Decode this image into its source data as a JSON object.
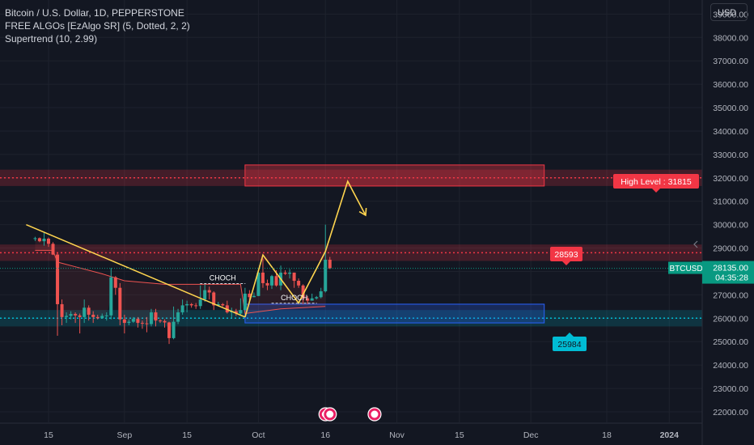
{
  "legend": {
    "line1": "Bitcoin / U.S. Dollar, 1D, PEPPERSTONE",
    "line2": "FREE ALGOs [EzAlgo SR] (5, Dotted, 2, 2)",
    "line3": "Supertrend (10, 2.99)"
  },
  "currency": "USD",
  "colors": {
    "background": "#131722",
    "up": "#26a69a",
    "down": "#ef5350",
    "resistance": "#f23645",
    "support": "#00bcd4",
    "projection": "#ffd54f",
    "price_tag": "#089981"
  },
  "chart_data": {
    "type": "candlestick",
    "y_ticks": [
      22000,
      23000,
      24000,
      25000,
      26000,
      27000,
      28000,
      29000,
      30000,
      31000,
      32000,
      33000,
      34000,
      35000,
      36000,
      37000,
      38000,
      39000
    ],
    "y_tick_labels": [
      "22000.00",
      "23000.00",
      "24000.00",
      "25000.00",
      "26000.00",
      "27000.00",
      "28000.00",
      "29000.00",
      "30000.00",
      "31000.00",
      "32000.00",
      "33000.00",
      "34000.00",
      "35000.00",
      "36000.00",
      "37000.00",
      "38000.00",
      "39000.00"
    ],
    "ylim": [
      21550,
      39600
    ],
    "x_ticks": [
      {
        "label": "15",
        "date": "2023-08-15"
      },
      {
        "label": "Sep",
        "date": "2023-09-01"
      },
      {
        "label": "15",
        "date": "2023-09-15"
      },
      {
        "label": "Oct",
        "date": "2023-10-01"
      },
      {
        "label": "16",
        "date": "2023-10-16"
      },
      {
        "label": "Nov",
        "date": "2023-11-01"
      },
      {
        "label": "15",
        "date": "2023-11-15"
      },
      {
        "label": "Dec",
        "date": "2023-12-01"
      },
      {
        "label": "18",
        "date": "2023-12-18"
      },
      {
        "label": "2024",
        "date": "2024-01-01"
      }
    ],
    "candles": [
      {
        "date": "2023-08-12",
        "o": 29400,
        "h": 29480,
        "l": 29300,
        "c": 29420
      },
      {
        "date": "2023-08-13",
        "o": 29420,
        "h": 29450,
        "l": 29250,
        "c": 29290
      },
      {
        "date": "2023-08-14",
        "o": 29290,
        "h": 29650,
        "l": 29100,
        "c": 29400
      },
      {
        "date": "2023-08-15",
        "o": 29400,
        "h": 29450,
        "l": 29050,
        "c": 29180
      },
      {
        "date": "2023-08-16",
        "o": 29180,
        "h": 29250,
        "l": 28700,
        "c": 28720
      },
      {
        "date": "2023-08-17",
        "o": 28720,
        "h": 28780,
        "l": 25250,
        "c": 26600
      },
      {
        "date": "2023-08-18",
        "o": 26600,
        "h": 26800,
        "l": 25700,
        "c": 26050
      },
      {
        "date": "2023-08-19",
        "o": 26050,
        "h": 26250,
        "l": 25800,
        "c": 26100
      },
      {
        "date": "2023-08-20",
        "o": 26100,
        "h": 26300,
        "l": 25950,
        "c": 26180
      },
      {
        "date": "2023-08-21",
        "o": 26180,
        "h": 26250,
        "l": 25800,
        "c": 26120
      },
      {
        "date": "2023-08-22",
        "o": 26120,
        "h": 26200,
        "l": 25350,
        "c": 26050
      },
      {
        "date": "2023-08-23",
        "o": 26050,
        "h": 26800,
        "l": 25800,
        "c": 26450
      },
      {
        "date": "2023-08-24",
        "o": 26450,
        "h": 26550,
        "l": 25900,
        "c": 26150
      },
      {
        "date": "2023-08-25",
        "o": 26150,
        "h": 26300,
        "l": 25800,
        "c": 26050
      },
      {
        "date": "2023-08-26",
        "o": 26050,
        "h": 26150,
        "l": 25950,
        "c": 26000
      },
      {
        "date": "2023-08-27",
        "o": 26000,
        "h": 26200,
        "l": 25980,
        "c": 26100
      },
      {
        "date": "2023-08-28",
        "o": 26100,
        "h": 26250,
        "l": 25900,
        "c": 26120
      },
      {
        "date": "2023-08-29",
        "o": 26120,
        "h": 28150,
        "l": 25950,
        "c": 27750
      },
      {
        "date": "2023-08-30",
        "o": 27750,
        "h": 27800,
        "l": 27000,
        "c": 27300
      },
      {
        "date": "2023-08-31",
        "o": 27300,
        "h": 27500,
        "l": 25700,
        "c": 25950
      },
      {
        "date": "2023-09-01",
        "o": 25950,
        "h": 26150,
        "l": 25350,
        "c": 25800
      },
      {
        "date": "2023-09-02",
        "o": 25800,
        "h": 25950,
        "l": 25700,
        "c": 25850
      },
      {
        "date": "2023-09-03",
        "o": 25850,
        "h": 26050,
        "l": 25800,
        "c": 25970
      },
      {
        "date": "2023-09-04",
        "o": 25970,
        "h": 26050,
        "l": 25600,
        "c": 25800
      },
      {
        "date": "2023-09-05",
        "o": 25800,
        "h": 25900,
        "l": 25550,
        "c": 25780
      },
      {
        "date": "2023-09-06",
        "o": 25780,
        "h": 26050,
        "l": 25400,
        "c": 25750
      },
      {
        "date": "2023-09-07",
        "o": 25750,
        "h": 26400,
        "l": 25650,
        "c": 26250
      },
      {
        "date": "2023-09-08",
        "o": 26250,
        "h": 26400,
        "l": 25650,
        "c": 25900
      },
      {
        "date": "2023-09-09",
        "o": 25900,
        "h": 25950,
        "l": 25800,
        "c": 25880
      },
      {
        "date": "2023-09-10",
        "o": 25880,
        "h": 25950,
        "l": 25600,
        "c": 25820
      },
      {
        "date": "2023-09-11",
        "o": 25820,
        "h": 25850,
        "l": 24900,
        "c": 25150
      },
      {
        "date": "2023-09-12",
        "o": 25150,
        "h": 26500,
        "l": 25100,
        "c": 25850
      },
      {
        "date": "2023-09-13",
        "o": 25850,
        "h": 26400,
        "l": 25750,
        "c": 26250
      },
      {
        "date": "2023-09-14",
        "o": 26250,
        "h": 26800,
        "l": 26150,
        "c": 26550
      },
      {
        "date": "2023-09-15",
        "o": 26550,
        "h": 26750,
        "l": 26250,
        "c": 26600
      },
      {
        "date": "2023-09-16",
        "o": 26600,
        "h": 26650,
        "l": 26450,
        "c": 26550
      },
      {
        "date": "2023-09-17",
        "o": 26550,
        "h": 26650,
        "l": 26400,
        "c": 26520
      },
      {
        "date": "2023-09-18",
        "o": 26520,
        "h": 27400,
        "l": 26400,
        "c": 26800
      },
      {
        "date": "2023-09-19",
        "o": 26800,
        "h": 27450,
        "l": 26700,
        "c": 27200
      },
      {
        "date": "2023-09-20",
        "o": 27200,
        "h": 27350,
        "l": 26800,
        "c": 27100
      },
      {
        "date": "2023-09-21",
        "o": 27100,
        "h": 27150,
        "l": 26350,
        "c": 26550
      },
      {
        "date": "2023-09-22",
        "o": 26550,
        "h": 26700,
        "l": 26500,
        "c": 26600
      },
      {
        "date": "2023-09-23",
        "o": 26600,
        "h": 26650,
        "l": 26500,
        "c": 26550
      },
      {
        "date": "2023-09-24",
        "o": 26550,
        "h": 26750,
        "l": 26200,
        "c": 26250
      },
      {
        "date": "2023-09-25",
        "o": 26250,
        "h": 26450,
        "l": 26000,
        "c": 26300
      },
      {
        "date": "2023-09-26",
        "o": 26300,
        "h": 26400,
        "l": 26100,
        "c": 26200
      },
      {
        "date": "2023-09-27",
        "o": 26200,
        "h": 26850,
        "l": 26150,
        "c": 26350
      },
      {
        "date": "2023-09-28",
        "o": 26350,
        "h": 27300,
        "l": 26350,
        "c": 27050
      },
      {
        "date": "2023-09-29",
        "o": 27050,
        "h": 27200,
        "l": 26700,
        "c": 26900
      },
      {
        "date": "2023-09-30",
        "o": 26900,
        "h": 27100,
        "l": 26900,
        "c": 26950
      },
      {
        "date": "2023-10-01",
        "o": 26950,
        "h": 28050,
        "l": 26950,
        "c": 27950
      },
      {
        "date": "2023-10-02",
        "o": 27950,
        "h": 28550,
        "l": 27300,
        "c": 27500
      },
      {
        "date": "2023-10-03",
        "o": 27500,
        "h": 27650,
        "l": 27200,
        "c": 27400
      },
      {
        "date": "2023-10-04",
        "o": 27400,
        "h": 27850,
        "l": 27250,
        "c": 27800
      },
      {
        "date": "2023-10-05",
        "o": 27800,
        "h": 28050,
        "l": 27350,
        "c": 27400
      },
      {
        "date": "2023-10-06",
        "o": 27400,
        "h": 28250,
        "l": 27200,
        "c": 27950
      },
      {
        "date": "2023-10-07",
        "o": 27950,
        "h": 28050,
        "l": 27850,
        "c": 27900
      },
      {
        "date": "2023-10-08",
        "o": 27900,
        "h": 28100,
        "l": 27700,
        "c": 27950
      },
      {
        "date": "2023-10-09",
        "o": 27950,
        "h": 27950,
        "l": 27300,
        "c": 27600
      },
      {
        "date": "2023-10-10",
        "o": 27600,
        "h": 27700,
        "l": 27300,
        "c": 27400
      },
      {
        "date": "2023-10-11",
        "o": 27400,
        "h": 27450,
        "l": 26600,
        "c": 26850
      },
      {
        "date": "2023-10-12",
        "o": 26850,
        "h": 26950,
        "l": 26600,
        "c": 26750
      },
      {
        "date": "2023-10-13",
        "o": 26750,
        "h": 27050,
        "l": 26800,
        "c": 26850
      },
      {
        "date": "2023-10-14",
        "o": 26850,
        "h": 26950,
        "l": 26800,
        "c": 26900
      },
      {
        "date": "2023-10-15",
        "o": 26900,
        "h": 27300,
        "l": 26850,
        "c": 27150
      },
      {
        "date": "2023-10-16",
        "o": 27150,
        "h": 30000,
        "l": 27100,
        "c": 28500
      },
      {
        "date": "2023-10-17",
        "o": 28500,
        "h": 28620,
        "l": 28100,
        "c": 28135
      }
    ],
    "supertrend": [
      {
        "date": "2023-08-12",
        "v": 28900
      },
      {
        "date": "2023-08-16",
        "v": 28900
      },
      {
        "date": "2023-08-17",
        "v": 28400
      },
      {
        "date": "2023-08-21",
        "v": 28200
      },
      {
        "date": "2023-08-27",
        "v": 27900
      },
      {
        "date": "2023-09-01",
        "v": 27600
      },
      {
        "date": "2023-09-10",
        "v": 27450
      },
      {
        "date": "2023-09-20",
        "v": 27450
      },
      {
        "date": "2023-09-27",
        "v": 27450
      },
      {
        "date": "2023-09-28",
        "v": 26200
      },
      {
        "date": "2023-10-06",
        "v": 26400
      },
      {
        "date": "2023-10-16",
        "v": 26500
      }
    ],
    "resistance_levels": [
      28800,
      32000
    ],
    "support_levels": [
      26000
    ],
    "resistance_zone": {
      "x0": "2023-09-28",
      "x1": "2023-12-04",
      "y0": 31650,
      "y1": 32550
    },
    "support_zone": {
      "x0": "2023-09-28",
      "x1": "2023-12-04",
      "y0": 25800,
      "y1": 26600
    },
    "trendline": [
      {
        "date": "2023-08-10",
        "y": 30000
      },
      {
        "date": "2023-09-28",
        "y": 26050
      }
    ],
    "projection": [
      {
        "date": "2023-09-28",
        "y": 26050
      },
      {
        "date": "2023-10-02",
        "y": 28700
      },
      {
        "date": "2023-10-10",
        "y": 26650
      },
      {
        "date": "2023-10-16",
        "y": 28850
      },
      {
        "date": "2023-10-21",
        "y": 31850
      },
      {
        "date": "2023-10-25",
        "y": 30400
      }
    ],
    "annotations": [
      {
        "text": "CHOCH",
        "date": "2023-09-23",
        "y": 27620
      },
      {
        "text": "CHOCH",
        "date": "2023-10-09",
        "y": 26780
      }
    ],
    "labels": {
      "high_level": "High Level : 31815",
      "r_level": "28593",
      "s_level": "25984",
      "symbol": "BTCUSD",
      "price": "28135.00",
      "countdown": "04:35:28"
    }
  }
}
